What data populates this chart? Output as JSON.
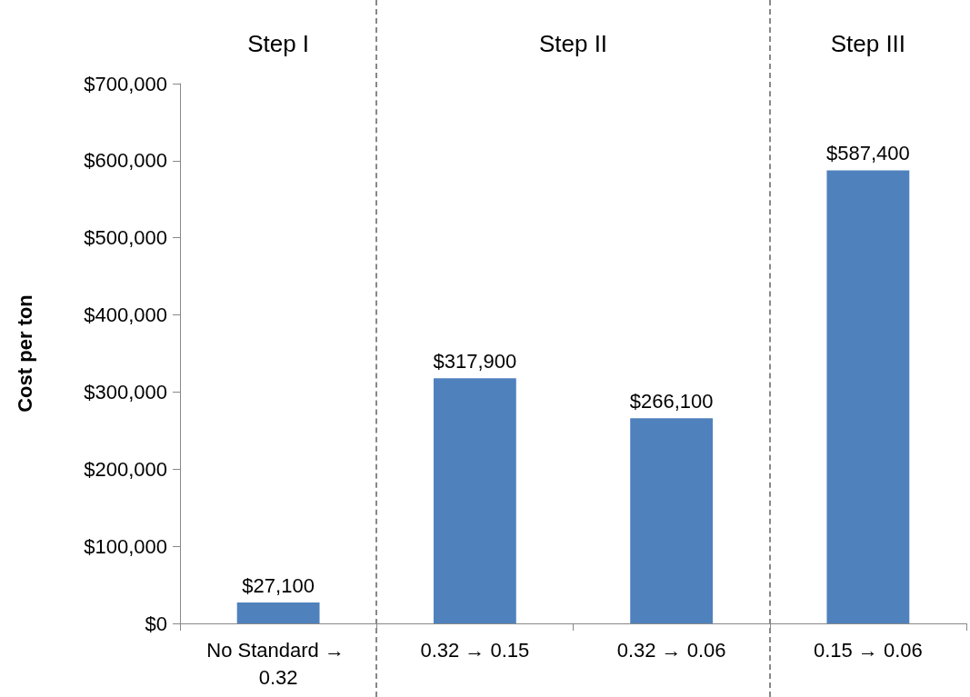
{
  "chart_data": {
    "type": "bar",
    "ylabel": "Cost per ton",
    "categories": [
      "No Standard → 0.32",
      "0.32 → 0.15",
      "0.32 → 0.06",
      "0.15 → 0.06"
    ],
    "values": [
      27100,
      317900,
      266100,
      587400
    ],
    "value_labels": [
      "$27,100",
      "$317,900",
      "$266,100",
      "$587,400"
    ],
    "color": "#4f81bd",
    "ylim": [
      0,
      700000
    ],
    "yticks": [
      {
        "value": 0,
        "label": "$0"
      },
      {
        "value": 100000,
        "label": "$100,000"
      },
      {
        "value": 200000,
        "label": "$200,000"
      },
      {
        "value": 300000,
        "label": "$300,000"
      },
      {
        "value": 400000,
        "label": "$400,000"
      },
      {
        "value": 500000,
        "label": "$500,000"
      },
      {
        "value": 600000,
        "label": "$600,000"
      },
      {
        "value": 700000,
        "label": "$700,000"
      }
    ],
    "annotations": [
      "Step I",
      "Step II",
      "Step III"
    ],
    "grid": false
  }
}
